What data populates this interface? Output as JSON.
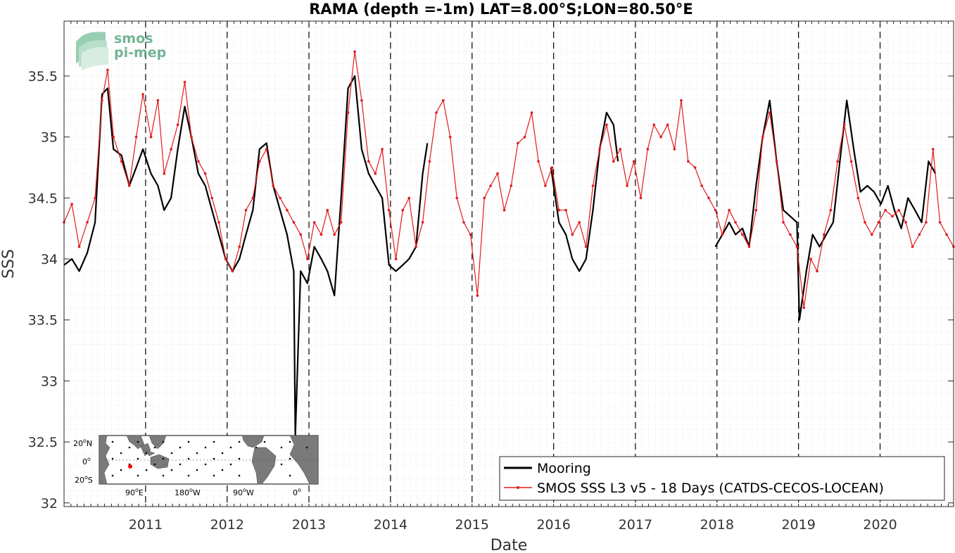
{
  "chart_data": {
    "type": "line",
    "title": "RAMA (depth =-1m) LAT=8.00°S;LON=80.50°E",
    "xlabel": "Date",
    "ylabel": "SSS",
    "xlim": [
      "2010-01-01",
      "2020-11-25"
    ],
    "ylim": [
      31.97,
      35.95
    ],
    "yticks": [
      "32",
      "32.5",
      "33",
      "33.5",
      "34",
      "34.5",
      "35",
      "35.5"
    ],
    "xticks": [
      "2011",
      "2012",
      "2013",
      "2014",
      "2015",
      "2016",
      "2017",
      "2018",
      "2019",
      "2020"
    ],
    "year_boundaries_dashed": true,
    "grid": "minor-dotted",
    "legend_position": "bottom-right",
    "series": [
      {
        "name": "Mooring",
        "color": "#000000",
        "style": "thick-line",
        "x": [
          "2010-01-01",
          "2010-02-05",
          "2010-03-10",
          "2010-04-15",
          "2010-05-20",
          "2010-06-20",
          "2010-07-15",
          "2010-08-10",
          "2010-09-15",
          "2010-10-20",
          "2010-11-20",
          "2010-12-20",
          "2011-01-25",
          "2011-02-25",
          "2011-03-25",
          "2011-04-25",
          "2011-05-25",
          "2011-06-25",
          "2011-07-25",
          "2011-08-25",
          "2011-09-25",
          "2011-10-25",
          "2011-11-25",
          "2011-12-25",
          "2012-01-25",
          "2012-02-25",
          "2012-03-25",
          "2012-04-25",
          "2012-05-25",
          "2012-06-25",
          "2012-07-25",
          "2012-08-25",
          "2012-09-25",
          "2012-10-25",
          "2012-11-01",
          "2012-11-25",
          "2012-12-25",
          "2013-01-25",
          "2013-02-25",
          "2013-03-25",
          "2013-04-25",
          "2013-05-25",
          "2013-06-25",
          "2013-07-25",
          "2013-08-25",
          "2013-09-25",
          "2013-10-25",
          "2013-11-25",
          "2013-12-25",
          "2014-01-25",
          "2014-02-25",
          "2014-03-25",
          "2014-04-25",
          "2014-05-25",
          "2014-06-15"
        ],
        "y": [
          33.95,
          34.0,
          33.9,
          34.05,
          34.3,
          35.35,
          35.4,
          34.9,
          34.85,
          34.6,
          34.75,
          34.9,
          34.7,
          34.6,
          34.4,
          34.5,
          34.9,
          35.25,
          35.0,
          34.7,
          34.6,
          34.4,
          34.2,
          34.0,
          33.9,
          34.0,
          34.2,
          34.4,
          34.9,
          34.95,
          34.6,
          34.4,
          34.2,
          33.9,
          32.55,
          33.9,
          33.8,
          34.1,
          34.0,
          33.9,
          33.7,
          34.5,
          35.4,
          35.5,
          34.9,
          34.7,
          34.6,
          34.5,
          33.95,
          33.9,
          33.95,
          34.0,
          34.1,
          34.7,
          34.95
        ]
      },
      {
        "name": "Mooring",
        "color": "#000000",
        "style": "thick-line",
        "x": [
          "2015-12-20",
          "2016-01-25",
          "2016-02-25",
          "2016-03-25",
          "2016-04-25",
          "2016-05-25",
          "2016-06-25",
          "2016-07-25",
          "2016-08-25",
          "2016-09-25",
          "2016-10-15"
        ],
        "y": [
          34.75,
          34.3,
          34.2,
          34.0,
          33.9,
          34.0,
          34.4,
          34.9,
          35.2,
          35.1,
          34.8
        ]
      },
      {
        "name": "Mooring",
        "color": "#000000",
        "style": "thick-line",
        "x": [
          "2017-12-25",
          "2018-01-25",
          "2018-02-25",
          "2018-03-25",
          "2018-04-25",
          "2018-05-25",
          "2018-06-25",
          "2018-07-25",
          "2018-08-25",
          "2018-09-25",
          "2018-10-25",
          "2018-11-25",
          "2018-12-25",
          "2019-01-05",
          "2019-02-05",
          "2019-03-05",
          "2019-04-05",
          "2019-05-05",
          "2019-06-05",
          "2019-07-05",
          "2019-08-05",
          "2019-09-05",
          "2019-10-05",
          "2019-11-05",
          "2019-12-05",
          "2020-01-05",
          "2020-02-05",
          "2020-03-05",
          "2020-04-05",
          "2020-05-05",
          "2020-06-05",
          "2020-07-05",
          "2020-08-05",
          "2020-09-05"
        ],
        "y": [
          34.1,
          34.2,
          34.3,
          34.2,
          34.25,
          34.1,
          34.6,
          35.0,
          35.3,
          34.8,
          34.4,
          34.35,
          34.3,
          33.5,
          33.9,
          34.2,
          34.1,
          34.2,
          34.3,
          34.8,
          35.3,
          34.9,
          34.55,
          34.6,
          34.55,
          34.45,
          34.6,
          34.4,
          34.25,
          34.5,
          34.4,
          34.3,
          34.8,
          34.7
        ]
      },
      {
        "name": "SMOS SSS L3 v5 - 18 Days (CATDS-CECOS-LOCEAN)",
        "color": "#e31a1c",
        "style": "thin-line-dots",
        "x": [
          "2010-01-01",
          "2010-02-05",
          "2010-03-10",
          "2010-04-15",
          "2010-05-20",
          "2010-06-20",
          "2010-07-15",
          "2010-08-10",
          "2010-09-15",
          "2010-10-20",
          "2010-11-20",
          "2010-12-20",
          "2011-01-25",
          "2011-02-25",
          "2011-03-25",
          "2011-04-25",
          "2011-05-25",
          "2011-06-25",
          "2011-07-25",
          "2011-08-25",
          "2011-09-25",
          "2011-10-25",
          "2011-11-25",
          "2011-12-25",
          "2012-01-25",
          "2012-02-25",
          "2012-03-25",
          "2012-04-25",
          "2012-05-25",
          "2012-06-25",
          "2012-07-25",
          "2012-08-25",
          "2012-09-25",
          "2012-10-25",
          "2012-11-25",
          "2012-12-25",
          "2013-01-25",
          "2013-02-25",
          "2013-03-25",
          "2013-04-25",
          "2013-05-25",
          "2013-06-25",
          "2013-07-25",
          "2013-08-25",
          "2013-09-25",
          "2013-10-25",
          "2013-11-25",
          "2013-12-25",
          "2014-01-25",
          "2014-02-25",
          "2014-03-25",
          "2014-04-25",
          "2014-05-25",
          "2014-06-25",
          "2014-07-25",
          "2014-08-25",
          "2014-09-25",
          "2014-10-25",
          "2014-11-25",
          "2014-12-25",
          "2015-01-25",
          "2015-02-25",
          "2015-03-25",
          "2015-04-25",
          "2015-05-25",
          "2015-06-25",
          "2015-07-25",
          "2015-08-25",
          "2015-09-25",
          "2015-10-25",
          "2015-11-25",
          "2015-12-25",
          "2016-01-25",
          "2016-02-25",
          "2016-03-25",
          "2016-04-25",
          "2016-05-25",
          "2016-06-25",
          "2016-07-25",
          "2016-08-25",
          "2016-09-25",
          "2016-10-25",
          "2016-11-25",
          "2016-12-25",
          "2017-01-25",
          "2017-02-25",
          "2017-03-25",
          "2017-04-25",
          "2017-05-25",
          "2017-06-25",
          "2017-07-25",
          "2017-08-25",
          "2017-09-25",
          "2017-10-25",
          "2017-11-25",
          "2017-12-25",
          "2018-01-25",
          "2018-02-25",
          "2018-03-25",
          "2018-04-25",
          "2018-05-25",
          "2018-06-25",
          "2018-07-25",
          "2018-08-25",
          "2018-09-25",
          "2018-10-25",
          "2018-11-25",
          "2018-12-25",
          "2019-01-25",
          "2019-02-25",
          "2019-03-25",
          "2019-04-25",
          "2019-05-25",
          "2019-06-25",
          "2019-07-25",
          "2019-08-25",
          "2019-09-25",
          "2019-10-25",
          "2019-11-25",
          "2019-12-25",
          "2020-01-25",
          "2020-02-25",
          "2020-03-25",
          "2020-04-25",
          "2020-05-25",
          "2020-06-25",
          "2020-07-25",
          "2020-08-25",
          "2020-09-25",
          "2020-10-25",
          "2020-11-25"
        ],
        "y": [
          34.3,
          34.45,
          34.1,
          34.3,
          34.5,
          35.3,
          35.55,
          35.0,
          34.8,
          34.6,
          35.0,
          35.35,
          35.0,
          35.3,
          34.7,
          34.9,
          35.1,
          35.45,
          35.0,
          34.8,
          34.7,
          34.5,
          34.3,
          34.0,
          33.9,
          34.1,
          34.4,
          34.5,
          34.8,
          34.9,
          34.6,
          34.5,
          34.4,
          34.3,
          34.2,
          34.0,
          34.3,
          34.2,
          34.4,
          34.2,
          34.3,
          35.2,
          35.7,
          35.3,
          34.8,
          34.7,
          34.9,
          34.4,
          34.0,
          34.4,
          34.5,
          34.1,
          34.3,
          34.8,
          35.2,
          35.3,
          35.0,
          34.5,
          34.3,
          34.2,
          33.7,
          34.5,
          34.6,
          34.7,
          34.4,
          34.6,
          34.95,
          35.0,
          35.2,
          34.8,
          34.6,
          34.75,
          34.4,
          34.4,
          34.2,
          34.3,
          34.1,
          34.6,
          34.9,
          35.1,
          34.8,
          34.9,
          34.6,
          34.8,
          34.5,
          34.9,
          35.1,
          35.0,
          35.1,
          34.9,
          35.3,
          34.8,
          34.75,
          34.6,
          34.5,
          34.4,
          34.2,
          34.4,
          34.3,
          34.2,
          34.1,
          34.4,
          35.0,
          35.2,
          34.8,
          34.3,
          34.2,
          34.1,
          33.6,
          34.0,
          33.9,
          34.2,
          34.4,
          34.8,
          35.1,
          34.8,
          34.5,
          34.3,
          34.2,
          34.3,
          34.4,
          34.35,
          34.4,
          34.3,
          34.1,
          34.2,
          34.3,
          34.9,
          34.3,
          34.2,
          34.1
        ]
      }
    ],
    "legend": [
      {
        "label": "Mooring",
        "color": "#000000",
        "style": "thick-line"
      },
      {
        "label": "SMOS SSS L3 v5 - 18 Days (CATDS-CECOS-LOCEAN)",
        "color": "#e31a1c",
        "style": "thin-line-dots"
      }
    ],
    "inset_map": {
      "lat_labels": [
        "20",
        "0",
        "20"
      ],
      "lat_suffix": [
        "N",
        "",
        "S"
      ],
      "lon_labels": [
        "90",
        "180",
        "90",
        "0"
      ],
      "lon_suffix": [
        "E",
        "W",
        "W",
        ""
      ],
      "degree_marker": "o",
      "marker_color": "#ff0000"
    },
    "logo": {
      "line1": "smos",
      "line2": "pi-mep",
      "color": "#5aa882"
    }
  }
}
